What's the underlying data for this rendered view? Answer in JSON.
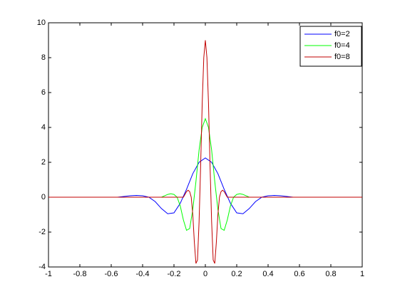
{
  "chart_data": {
    "type": "line",
    "xlim": [
      -1,
      1
    ],
    "xticks": [
      -1,
      -0.8,
      -0.6,
      -0.4,
      -0.2,
      0,
      0.2,
      0.4,
      0.6,
      0.8,
      1
    ],
    "ylim": [
      -4,
      10
    ],
    "yticks": [
      -4,
      -2,
      0,
      2,
      4,
      6,
      8,
      10
    ],
    "legend": "top-right",
    "series": [
      {
        "name": "f0=2",
        "color": "#0000ff",
        "x": [
          -1,
          -0.56,
          -0.52,
          -0.48,
          -0.44,
          -0.4,
          -0.36,
          -0.32,
          -0.28,
          -0.24,
          -0.2,
          -0.16,
          -0.12,
          -0.08,
          -0.04,
          0,
          0.04,
          0.08,
          0.12,
          0.16,
          0.2,
          0.24,
          0.28,
          0.32,
          0.36,
          0.4,
          0.44,
          0.48,
          0.52,
          0.56,
          1
        ],
        "values": [
          0,
          0,
          0.04,
          0.08,
          0.1,
          0.08,
          0,
          -0.25,
          -0.65,
          -0.95,
          -0.9,
          -0.35,
          0.45,
          1.35,
          2.0,
          2.25,
          2.0,
          1.35,
          0.45,
          -0.35,
          -0.9,
          -0.95,
          -0.65,
          -0.25,
          0,
          0.08,
          0.1,
          0.08,
          0.04,
          0,
          0
        ]
      },
      {
        "name": "f0=4",
        "color": "#00ff00",
        "x": [
          -1,
          -0.28,
          -0.26,
          -0.24,
          -0.22,
          -0.2,
          -0.18,
          -0.16,
          -0.14,
          -0.12,
          -0.1,
          -0.08,
          -0.06,
          -0.04,
          -0.02,
          0,
          0.02,
          0.04,
          0.06,
          0.08,
          0.1,
          0.12,
          0.14,
          0.16,
          0.18,
          0.2,
          0.22,
          0.24,
          0.26,
          0.28,
          1
        ],
        "values": [
          0,
          0,
          0.08,
          0.16,
          0.2,
          0.16,
          0,
          -0.5,
          -1.3,
          -1.9,
          -1.8,
          -0.7,
          0.9,
          2.7,
          4.0,
          4.5,
          4.0,
          2.7,
          0.9,
          -0.7,
          -1.8,
          -1.9,
          -1.3,
          -0.5,
          0,
          0.16,
          0.2,
          0.16,
          0.08,
          0,
          0
        ]
      },
      {
        "name": "f0=8",
        "color": "#c00000",
        "x": [
          -1,
          -0.14,
          -0.13,
          -0.12,
          -0.11,
          -0.1,
          -0.09,
          -0.08,
          -0.07,
          -0.06,
          -0.05,
          -0.04,
          -0.03,
          -0.02,
          -0.01,
          0,
          0.01,
          0.02,
          0.03,
          0.04,
          0.05,
          0.06,
          0.07,
          0.08,
          0.09,
          0.1,
          0.11,
          0.12,
          0.13,
          0.14,
          1
        ],
        "values": [
          0,
          0,
          0.16,
          0.32,
          0.4,
          0.32,
          0,
          -1,
          -2.6,
          -3.8,
          -3.6,
          -1.4,
          1.8,
          5.4,
          8.0,
          9.0,
          8.0,
          5.4,
          1.8,
          -1.4,
          -3.6,
          -3.8,
          -2.6,
          -1,
          0,
          0.32,
          0.4,
          0.32,
          0.16,
          0,
          0
        ]
      }
    ]
  }
}
